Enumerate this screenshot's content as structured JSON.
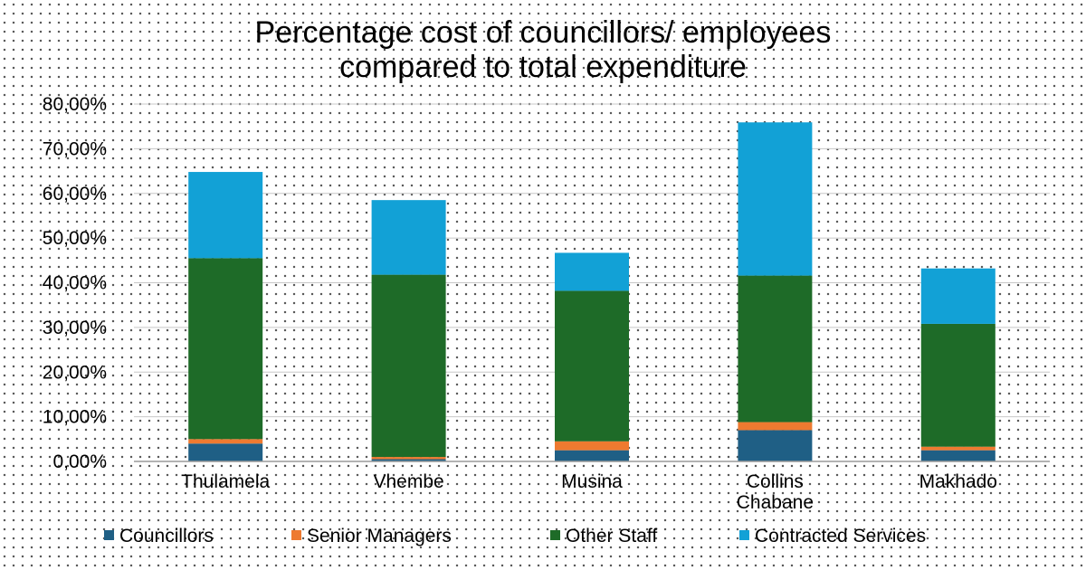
{
  "chart_data": {
    "type": "bar",
    "stacked": true,
    "title_lines": [
      "Percentage cost of councillors/ employees",
      "compared to total expenditure"
    ],
    "categories": [
      [
        "Thulamela"
      ],
      [
        "Vhembe"
      ],
      [
        "Musina"
      ],
      [
        "Collins",
        "Chabane"
      ],
      [
        "Makhado"
      ]
    ],
    "series": [
      {
        "name": "Councillors",
        "color": "#1f5f85",
        "values": [
          4.0,
          0.5,
          2.5,
          7.0,
          2.5
        ]
      },
      {
        "name": "Senior Managers",
        "color": "#ee7a30",
        "values": [
          1.0,
          0.5,
          2.0,
          1.8,
          0.8
        ]
      },
      {
        "name": "Other Staff",
        "color": "#1e6b28",
        "values": [
          40.5,
          40.8,
          33.7,
          32.8,
          27.5
        ]
      },
      {
        "name": "Contracted Services",
        "color": "#12a1d6",
        "values": [
          19.3,
          16.7,
          8.5,
          34.3,
          12.4
        ]
      }
    ],
    "ylim": [
      0,
      80
    ],
    "yticks": [
      {
        "value": 0,
        "label": "0,00%"
      },
      {
        "value": 10,
        "label": "10,00%"
      },
      {
        "value": 20,
        "label": "20,00%"
      },
      {
        "value": 30,
        "label": "30,00%"
      },
      {
        "value": 40,
        "label": "40,00%"
      },
      {
        "value": 50,
        "label": "50,00%"
      },
      {
        "value": 60,
        "label": "60,00%"
      },
      {
        "value": 70,
        "label": "70,00%"
      },
      {
        "value": 80,
        "label": "80,00%"
      }
    ],
    "grid": true,
    "legend_position": "bottom"
  }
}
